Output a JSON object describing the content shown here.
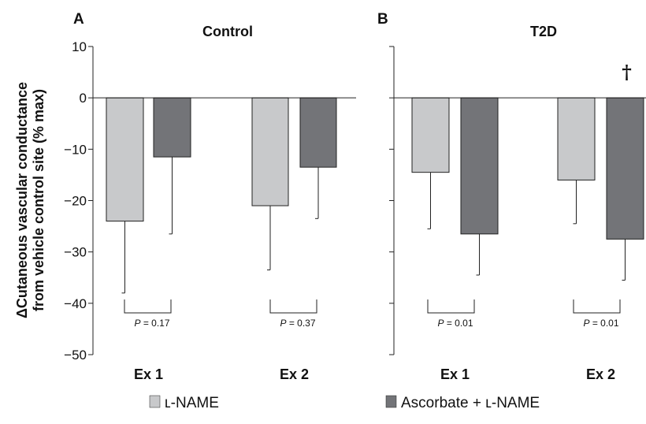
{
  "ylabel_lines": [
    "ΔCutaneous vascular conductance",
    "from vehicle control site (% max)"
  ],
  "chart_data": [
    {
      "type": "bar",
      "panel_letter": "A",
      "title": "Control",
      "categories": [
        "Ex 1",
        "Ex 2"
      ],
      "ylim": [
        -50,
        10
      ],
      "yticks": [
        10,
        0,
        -10,
        -20,
        -30,
        -40,
        -50
      ],
      "series": [
        {
          "name": "ʟ-NAME",
          "color": "#c8c9cb",
          "values": [
            -24,
            -21
          ],
          "error": [
            14,
            12.5
          ]
        },
        {
          "name": "Ascorbate + ʟ-NAME",
          "color": "#737478",
          "values": [
            -11.5,
            -13.5
          ],
          "error": [
            15,
            10
          ]
        }
      ],
      "p_values": [
        {
          "label": "P",
          "text": " = 0.17"
        },
        {
          "label": "P",
          "text": " = 0.37"
        }
      ],
      "markers": [
        "",
        ""
      ]
    },
    {
      "type": "bar",
      "panel_letter": "B",
      "title": "T2D",
      "categories": [
        "Ex 1",
        "Ex 2"
      ],
      "ylim": [
        -50,
        10
      ],
      "yticks": [
        10,
        0,
        -10,
        -20,
        -30,
        -40,
        -50
      ],
      "series": [
        {
          "name": "ʟ-NAME",
          "color": "#c8c9cb",
          "values": [
            -14.5,
            -16
          ],
          "error": [
            11,
            8.5
          ]
        },
        {
          "name": "Ascorbate + ʟ-NAME",
          "color": "#737478",
          "values": [
            -26.5,
            -27.5
          ],
          "error": [
            8,
            8
          ]
        }
      ],
      "p_values": [
        {
          "label": "P",
          "text": " = 0.01"
        },
        {
          "label": "P",
          "text": " = 0.01"
        }
      ],
      "markers": [
        "",
        "†"
      ]
    }
  ],
  "legend": [
    {
      "label": "ʟ-NAME",
      "color": "#c8c9cb"
    },
    {
      "label": "Ascorbate + ʟ-NAME",
      "color": "#737478"
    }
  ]
}
